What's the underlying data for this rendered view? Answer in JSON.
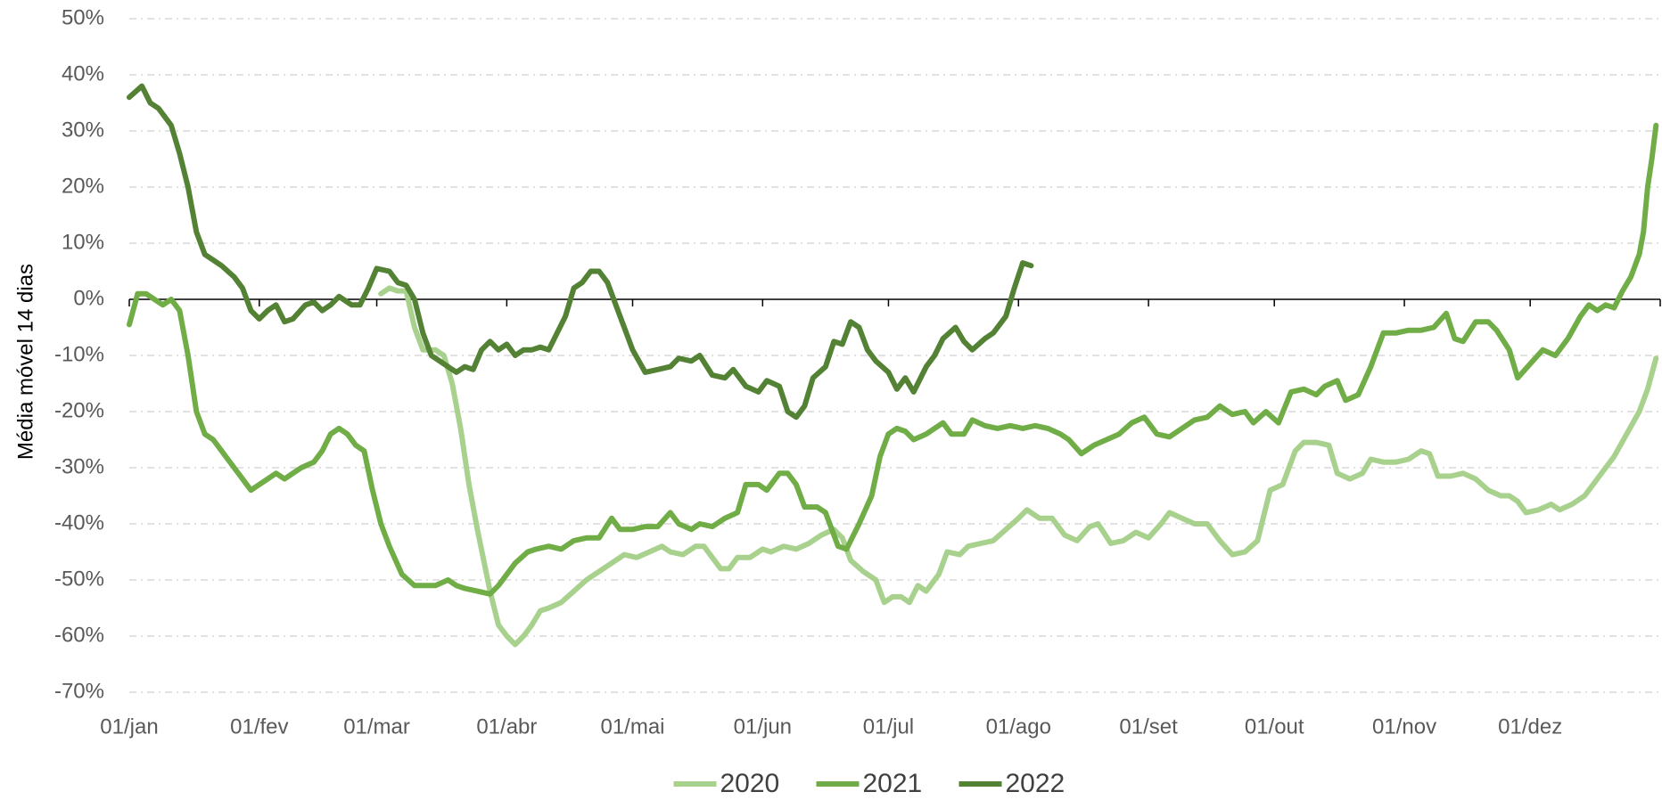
{
  "chart_data": {
    "type": "line",
    "y_label": "Média móvel 14 dias",
    "xlim": [
      0,
      365
    ],
    "xticks": [
      {
        "value": 0,
        "label": "01/jan"
      },
      {
        "value": 31,
        "label": "01/fev"
      },
      {
        "value": 59,
        "label": "01/mar"
      },
      {
        "value": 90,
        "label": "01/abr"
      },
      {
        "value": 120,
        "label": "01/mai"
      },
      {
        "value": 151,
        "label": "01/jun"
      },
      {
        "value": 181,
        "label": "01/jul"
      },
      {
        "value": 212,
        "label": "01/ago"
      },
      {
        "value": 243,
        "label": "01/set"
      },
      {
        "value": 273,
        "label": "01/out"
      },
      {
        "value": 304,
        "label": "01/nov"
      },
      {
        "value": 334,
        "label": "01/dez"
      }
    ],
    "ylim": [
      -70,
      50
    ],
    "yticks": [
      {
        "value": 50,
        "label": "50%"
      },
      {
        "value": 40,
        "label": "40%"
      },
      {
        "value": 30,
        "label": "30%"
      },
      {
        "value": 20,
        "label": "20%"
      },
      {
        "value": 10,
        "label": "10%"
      },
      {
        "value": 0,
        "label": "0%"
      },
      {
        "value": -10,
        "label": "-10%"
      },
      {
        "value": -20,
        "label": "-20%"
      },
      {
        "value": -30,
        "label": "-30%"
      },
      {
        "value": -40,
        "label": "-40%"
      },
      {
        "value": -50,
        "label": "-50%"
      },
      {
        "value": -60,
        "label": "-60%"
      },
      {
        "value": -70,
        "label": "-70%"
      }
    ],
    "grid": true,
    "legend": "bottom",
    "series": [
      {
        "name": "2020",
        "color": "#a9d18e",
        "x": [
          60,
          62,
          64,
          66,
          68,
          70,
          73,
          75,
          77,
          79,
          81,
          83,
          86,
          88,
          90,
          92,
          94,
          96,
          98,
          100,
          103,
          106,
          109,
          112,
          115,
          118,
          121,
          124,
          127,
          129,
          132,
          135,
          137,
          139,
          141,
          143,
          145,
          148,
          151,
          153,
          156,
          159,
          162,
          165,
          168,
          170,
          172,
          175,
          178,
          180,
          182,
          184,
          186,
          188,
          190,
          193,
          195,
          198,
          200,
          203,
          206,
          209,
          212,
          214,
          217,
          220,
          223,
          226,
          229,
          231,
          234,
          237,
          240,
          243,
          246,
          248,
          251,
          254,
          257,
          260,
          263,
          266,
          269,
          272,
          275,
          278,
          280,
          283,
          286,
          288,
          291,
          294,
          296,
          299,
          302,
          305,
          308,
          310,
          312,
          315,
          318,
          321,
          324,
          327,
          329,
          331,
          333,
          336,
          339,
          341,
          344,
          347,
          349,
          351,
          354,
          357,
          360,
          362,
          364
        ],
        "values": [
          1,
          2,
          1.5,
          1.5,
          -5,
          -9,
          -9,
          -10,
          -15,
          -23,
          -33,
          -41,
          -52,
          -58,
          -60,
          -61.5,
          -60,
          -58,
          -55.5,
          -55,
          -54,
          -52,
          -50,
          -48.5,
          -47,
          -45.5,
          -46,
          -45,
          -44,
          -45,
          -45.5,
          -44,
          -44,
          -46,
          -48,
          -48,
          -46,
          -46,
          -44.5,
          -45,
          -44,
          -44.5,
          -43.5,
          -42,
          -41,
          -42.5,
          -46.5,
          -48.5,
          -50,
          -54,
          -53,
          -53,
          -54,
          -51,
          -52,
          -49,
          -45,
          -45.5,
          -44,
          -43.5,
          -43,
          -41,
          -39,
          -37.5,
          -39,
          -39,
          -42,
          -43,
          -40.5,
          -40,
          -43.5,
          -43,
          -41.5,
          -42.5,
          -40,
          -38,
          -39,
          -40,
          -40,
          -43,
          -45.5,
          -45,
          -43,
          -34,
          -33,
          -27,
          -25.5,
          -25.5,
          -26,
          -31,
          -32,
          -31,
          -28.5,
          -29,
          -29,
          -28.5,
          -27,
          -27.5,
          -31.5,
          -31.5,
          -31,
          -32,
          -34,
          -35,
          -35,
          -36,
          -38,
          -37.5,
          -36.5,
          -37.5,
          -36.5,
          -35,
          -33,
          -31,
          -28,
          -24,
          -20,
          -16,
          -10.5
        ]
      },
      {
        "name": "2021",
        "color": "#70ad47",
        "x": [
          0,
          2,
          4,
          6,
          8,
          10,
          12,
          14,
          16,
          18,
          20,
          22,
          25,
          27,
          29,
          31,
          33,
          35,
          37,
          39,
          41,
          44,
          46,
          48,
          50,
          52,
          54,
          56,
          58,
          60,
          62,
          65,
          68,
          70,
          73,
          76,
          78,
          80,
          83,
          86,
          88,
          90,
          92,
          95,
          97,
          100,
          103,
          106,
          109,
          112,
          115,
          117,
          120,
          123,
          126,
          129,
          131,
          134,
          136,
          139,
          142,
          145,
          147,
          150,
          152,
          155,
          157,
          159,
          161,
          164,
          166,
          169,
          171,
          174,
          177,
          179,
          181,
          183,
          185,
          187,
          190,
          192,
          194,
          196,
          199,
          201,
          204,
          207,
          210,
          213,
          216,
          219,
          222,
          224,
          227,
          230,
          233,
          236,
          239,
          242,
          245,
          248,
          251,
          254,
          257,
          260,
          263,
          266,
          268,
          271,
          274,
          277,
          280,
          283,
          285,
          288,
          290,
          293,
          296,
          299,
          302,
          305,
          308,
          311,
          314,
          316,
          318,
          321,
          324,
          326,
          329,
          331,
          334,
          337,
          340,
          343,
          346,
          348,
          350,
          352,
          354,
          356,
          358,
          359,
          360,
          361,
          362,
          363,
          364
        ],
        "values": [
          -4.5,
          1,
          1,
          0,
          -1,
          0,
          -2,
          -10,
          -20,
          -24,
          -25,
          -27,
          -30,
          -32,
          -34,
          -33,
          -32,
          -31,
          -32,
          -31,
          -30,
          -29,
          -27,
          -24,
          -23,
          -24,
          -26,
          -27,
          -34,
          -40,
          -44,
          -49,
          -51,
          -51,
          -51,
          -50,
          -51,
          -51.5,
          -52,
          -52.5,
          -51,
          -49,
          -47,
          -45,
          -44.5,
          -44,
          -44.5,
          -43,
          -42.5,
          -42.5,
          -39,
          -41,
          -41,
          -40.5,
          -40.5,
          -38,
          -40,
          -41,
          -40,
          -40.5,
          -39,
          -38,
          -33,
          -33,
          -34,
          -31,
          -31,
          -33,
          -37,
          -37,
          -38,
          -44,
          -44.5,
          -40,
          -35,
          -28,
          -24,
          -23,
          -23.5,
          -25,
          -24,
          -23,
          -22,
          -24,
          -24,
          -21.5,
          -22.5,
          -23,
          -22.5,
          -23,
          -22.5,
          -23,
          -24,
          -25,
          -27.5,
          -26,
          -25,
          -24,
          -22,
          -21,
          -24,
          -24.5,
          -23,
          -21.5,
          -21,
          -19,
          -20.5,
          -20,
          -22,
          -20,
          -22,
          -16.5,
          -16,
          -17,
          -15.5,
          -14.5,
          -18,
          -17,
          -12,
          -6,
          -6,
          -5.5,
          -5.5,
          -5,
          -2.5,
          -7,
          -7.5,
          -4,
          -4,
          -5.5,
          -9,
          -14,
          -11.5,
          -9,
          -10,
          -7,
          -3,
          -1,
          -2,
          -1,
          -1.5,
          1.5,
          4,
          6,
          8,
          12,
          20,
          25,
          31
        ]
      },
      {
        "name": "2022",
        "color": "#548235",
        "x": [
          0,
          3,
          5,
          7,
          10,
          12,
          14,
          16,
          18,
          20,
          22,
          25,
          27,
          29,
          31,
          33,
          35,
          37,
          39,
          42,
          44,
          46,
          48,
          50,
          53,
          55,
          57,
          59,
          62,
          64,
          66,
          68,
          70,
          72,
          74,
          76,
          78,
          80,
          82,
          84,
          86,
          88,
          90,
          92,
          94,
          96,
          98,
          100,
          102,
          104,
          106,
          108,
          110,
          112,
          114,
          117,
          120,
          123,
          126,
          129,
          131,
          134,
          136,
          139,
          142,
          144,
          147,
          150,
          152,
          155,
          157,
          159,
          161,
          163,
          166,
          168,
          170,
          172,
          174,
          176,
          178,
          181,
          183,
          185,
          187,
          190,
          192,
          194,
          197,
          199,
          201,
          204,
          206,
          209,
          211,
          213,
          215
        ],
        "values": [
          36,
          38,
          35,
          34,
          31,
          26,
          20,
          12,
          8,
          7,
          6,
          4,
          2,
          -2,
          -3.5,
          -2,
          -1,
          -4,
          -3.5,
          -1,
          -0.5,
          -2,
          -1,
          0.5,
          -1,
          -1,
          2,
          5.5,
          5,
          3,
          2.5,
          0,
          -6,
          -10,
          -11,
          -12,
          -13,
          -12,
          -12.5,
          -9,
          -7.5,
          -9,
          -8,
          -10,
          -9,
          -9,
          -8.5,
          -9,
          -6,
          -3,
          2,
          3,
          5,
          5,
          3,
          -3,
          -9,
          -13,
          -12.5,
          -12,
          -10.5,
          -11,
          -10,
          -13.5,
          -14,
          -12.5,
          -15.5,
          -16.5,
          -14.5,
          -15.5,
          -20,
          -21,
          -19,
          -14,
          -12,
          -7.5,
          -8,
          -4,
          -5,
          -9,
          -11,
          -13,
          -16,
          -14,
          -16.5,
          -12,
          -10,
          -7,
          -5,
          -7.5,
          -9,
          -7,
          -6,
          -3,
          2,
          6.5,
          6
        ]
      }
    ]
  }
}
